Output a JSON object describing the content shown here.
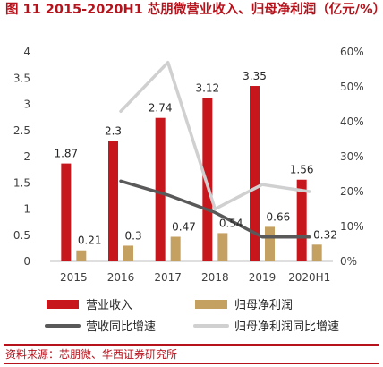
{
  "figure": {
    "title": "图 11  2015-2020H1 芯朋微营业收入、归母净利润（亿元/%）",
    "source": "资料来源：芯朋微、华西证券研究所"
  },
  "colors": {
    "revenue": "#c8161d",
    "profit": "#c5a161",
    "revenue_growth": "#595959",
    "profit_growth": "#d0d0d0",
    "title": "#b5121b"
  },
  "chart_data": {
    "type": "bar",
    "categories": [
      "2015",
      "2016",
      "2017",
      "2018",
      "2019",
      "2020H1"
    ],
    "y_left": {
      "min": 0,
      "max": 4,
      "ticks": [
        "0",
        "0.5",
        "1",
        "1.5",
        "2",
        "2.5",
        "3",
        "3.5",
        "4"
      ]
    },
    "y_right": {
      "min": 0,
      "max": 60,
      "ticks": [
        "0%",
        "10%",
        "20%",
        "30%",
        "40%",
        "50%",
        "60%"
      ]
    },
    "grid": false,
    "legend_position": "bottom",
    "series": [
      {
        "name": "营业收入",
        "type": "bar",
        "axis": "left",
        "values": [
          1.87,
          2.3,
          2.74,
          3.12,
          3.35,
          1.56
        ],
        "labels": [
          "1.87",
          "2.3",
          "2.74",
          "3.12",
          "3.35",
          "1.56"
        ]
      },
      {
        "name": "归母净利润",
        "type": "bar",
        "axis": "left",
        "values": [
          0.21,
          0.3,
          0.47,
          0.54,
          0.66,
          0.32
        ],
        "labels": [
          "0.21",
          "0.3",
          "0.47",
          "0.54",
          "0.66",
          "0.32"
        ]
      },
      {
        "name": "营收同比增速",
        "type": "line",
        "axis": "right",
        "values": [
          null,
          23,
          19,
          14,
          7,
          7
        ]
      },
      {
        "name": "归母净利润同比增速",
        "type": "line",
        "axis": "right",
        "values": [
          null,
          43,
          57,
          15,
          22,
          20
        ]
      }
    ]
  }
}
